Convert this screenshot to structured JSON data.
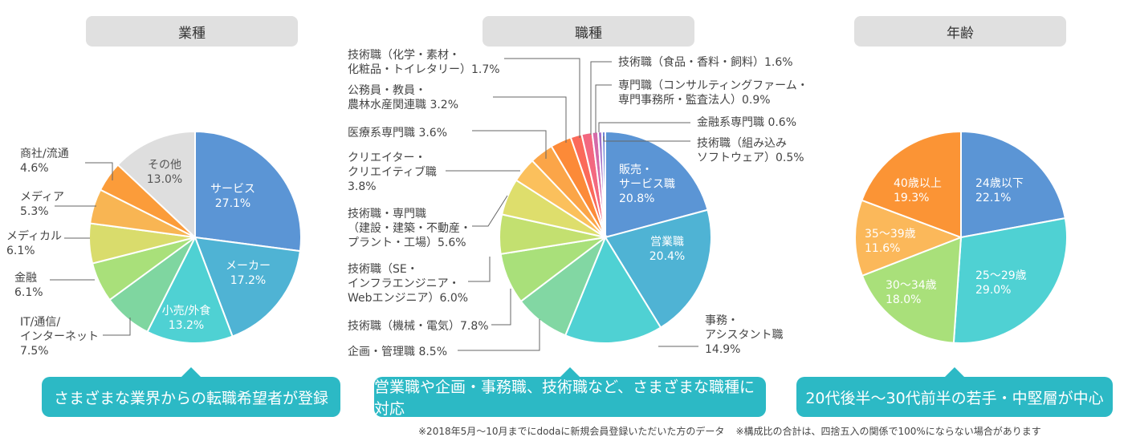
{
  "charts": [
    {
      "id": "industry",
      "header": "業種",
      "banner": "さまざまな業界からの転職希望者が登録",
      "chart_data": {
        "type": "pie",
        "title": "業種",
        "series": [
          {
            "name": "サービス",
            "value": 27.1,
            "color": "#5b95d5"
          },
          {
            "name": "メーカー",
            "value": 17.2,
            "color": "#4fb3d4"
          },
          {
            "name": "小売/外食",
            "value": 13.2,
            "color": "#4fd1d3"
          },
          {
            "name": "IT/通信/インターネット",
            "value": 7.5,
            "color": "#7fd6a0"
          },
          {
            "name": "金融",
            "value": 6.1,
            "color": "#a9e07a"
          },
          {
            "name": "メディカル",
            "value": 6.1,
            "color": "#d9dc6c"
          },
          {
            "name": "メディア",
            "value": 5.3,
            "color": "#f8b553"
          },
          {
            "name": "商社/流通",
            "value": 4.6,
            "color": "#fb9c3a"
          },
          {
            "name": "その他",
            "value": 13.0,
            "color": "#dedede"
          }
        ]
      },
      "labels": [
        {
          "name": "サービス",
          "lines": [
            "サービス",
            "27.1%"
          ]
        },
        {
          "name": "メーカー",
          "lines": [
            "メーカー",
            "17.2%"
          ]
        },
        {
          "name": "小売/外食",
          "lines": [
            "小売/外食",
            "13.2%"
          ]
        },
        {
          "name": "IT/通信/インターネット",
          "lines": [
            "IT/通信/",
            "インターネット",
            "7.5%"
          ]
        },
        {
          "name": "金融",
          "lines": [
            "金融",
            "6.1%"
          ]
        },
        {
          "name": "メディカル",
          "lines": [
            "メディカル",
            "6.1%"
          ]
        },
        {
          "name": "メディア",
          "lines": [
            "メディア",
            "5.3%"
          ]
        },
        {
          "name": "商社/流通",
          "lines": [
            "商社/流通",
            "4.6%"
          ]
        },
        {
          "name": "その他",
          "lines": [
            "その他",
            "13.0%"
          ]
        }
      ]
    },
    {
      "id": "occupation",
      "header": "職種",
      "banner": "営業職や企画・事務職、技術職など、さまざまな職種に対応",
      "chart_data": {
        "type": "pie",
        "title": "職種",
        "series": [
          {
            "name": "販売・サービス職",
            "value": 20.8,
            "color": "#5b95d5"
          },
          {
            "name": "営業職",
            "value": 20.4,
            "color": "#4fb3d4"
          },
          {
            "name": "事務・アシスタント職",
            "value": 14.9,
            "color": "#4fd1d3"
          },
          {
            "name": "企画・管理職",
            "value": 8.5,
            "color": "#82d7a3"
          },
          {
            "name": "技術職（機械・電気）",
            "value": 7.8,
            "color": "#a9e07a"
          },
          {
            "name": "技術職（SE・インフラエンジニア・Webエンジニア）",
            "value": 6.0,
            "color": "#c3e070"
          },
          {
            "name": "技術職・専門職（建設・建築・不動産・プラント・工場）",
            "value": 5.6,
            "color": "#dede6c"
          },
          {
            "name": "クリエイター・クリエイティブ職",
            "value": 3.8,
            "color": "#fbc05c"
          },
          {
            "name": "医療系専門職",
            "value": 3.6,
            "color": "#fba548"
          },
          {
            "name": "公務員・教員・農林水産関連職",
            "value": 3.2,
            "color": "#fc8a38"
          },
          {
            "name": "技術職（化学・素材・化粧品・トイレタリー）",
            "value": 1.7,
            "color": "#fb6a5a"
          },
          {
            "name": "技術職（食品・香料・飼料）",
            "value": 1.6,
            "color": "#f36880"
          },
          {
            "name": "専門職（コンサルティングファーム・専門事務所・監査法人）",
            "value": 0.9,
            "color": "#d56aa8"
          },
          {
            "name": "金融系専門職",
            "value": 0.6,
            "color": "#a06ec6"
          },
          {
            "name": "技術職（組み込みソフトウェア）",
            "value": 0.5,
            "color": "#6f84d6"
          }
        ]
      },
      "labels": [
        {
          "name": "販売・サービス職",
          "lines": [
            "販売・",
            "サービス職",
            "20.8%"
          ]
        },
        {
          "name": "営業職",
          "lines": [
            "営業職",
            "20.4%"
          ]
        },
        {
          "name": "事務・アシスタント職",
          "lines": [
            "事務・",
            "アシスタント職",
            "14.9%"
          ]
        },
        {
          "name": "企画・管理職",
          "lines": [
            "企画・管理職 8.5%"
          ]
        },
        {
          "name": "技術職（機械・電気）",
          "lines": [
            "技術職（機械・電気）7.8%"
          ]
        },
        {
          "name": "技術職（SE）",
          "lines": [
            "技術職（SE・",
            "インフラエンジニア・",
            "Webエンジニア）6.0%"
          ]
        },
        {
          "name": "技術職・専門職",
          "lines": [
            "技術職・専門職",
            "（建設・建築・不動産・",
            "プラント・工場）5.6%"
          ]
        },
        {
          "name": "クリエイター",
          "lines": [
            "クリエイター・",
            "クリエイティブ職",
            "3.8%"
          ]
        },
        {
          "name": "医療系専門職",
          "lines": [
            "医療系専門職 3.6%"
          ]
        },
        {
          "name": "公務員",
          "lines": [
            "公務員・教員・",
            "農林水産関連職 3.2%"
          ]
        },
        {
          "name": "技術職（化学）",
          "lines": [
            "技術職（化学・素材・",
            "化粧品・トイレタリー）1.7%"
          ]
        },
        {
          "name": "技術職（食品）",
          "lines": [
            "技術職（食品・香料・飼料）1.6%"
          ]
        },
        {
          "name": "専門職（コンサル）",
          "lines": [
            "専門職（コンサルティングファーム・",
            "専門事務所・監査法人）0.9%"
          ]
        },
        {
          "name": "金融系専門職",
          "lines": [
            "金融系専門職 0.6%"
          ]
        },
        {
          "name": "技術職（組み込み）",
          "lines": [
            "技術職（組み込み",
            "ソフトウェア）0.5%"
          ]
        }
      ]
    },
    {
      "id": "age",
      "header": "年齢",
      "banner": "20代後半〜30代前半の若手・中堅層が中心",
      "chart_data": {
        "type": "pie",
        "title": "年齢",
        "series": [
          {
            "name": "24歳以下",
            "value": 22.1,
            "color": "#5b95d5"
          },
          {
            "name": "25〜29歳",
            "value": 29.0,
            "color": "#4fd1d3"
          },
          {
            "name": "30〜34歳",
            "value": 18.0,
            "color": "#a9e07a"
          },
          {
            "name": "35〜39歳",
            "value": 11.6,
            "color": "#fbb85a"
          },
          {
            "name": "40歳以上",
            "value": 19.3,
            "color": "#fb9435"
          }
        ]
      },
      "labels": [
        {
          "name": "24歳以下",
          "lines": [
            "24歳以下",
            "22.1%"
          ]
        },
        {
          "name": "25〜29歳",
          "lines": [
            "25〜29歳",
            "29.0%"
          ]
        },
        {
          "name": "30〜34歳",
          "lines": [
            "30〜34歳",
            "18.0%"
          ]
        },
        {
          "name": "35〜39歳",
          "lines": [
            "35〜39歳",
            "11.6%"
          ]
        },
        {
          "name": "40歳以上",
          "lines": [
            "40歳以上",
            "19.3%"
          ]
        }
      ]
    }
  ],
  "footnotes": [
    "※2018年5月〜10月までにdodaに新規会員登録いただいた方のデータ",
    "※構成比の合計は、四捨五入の関係で100%にならない場合があります"
  ]
}
